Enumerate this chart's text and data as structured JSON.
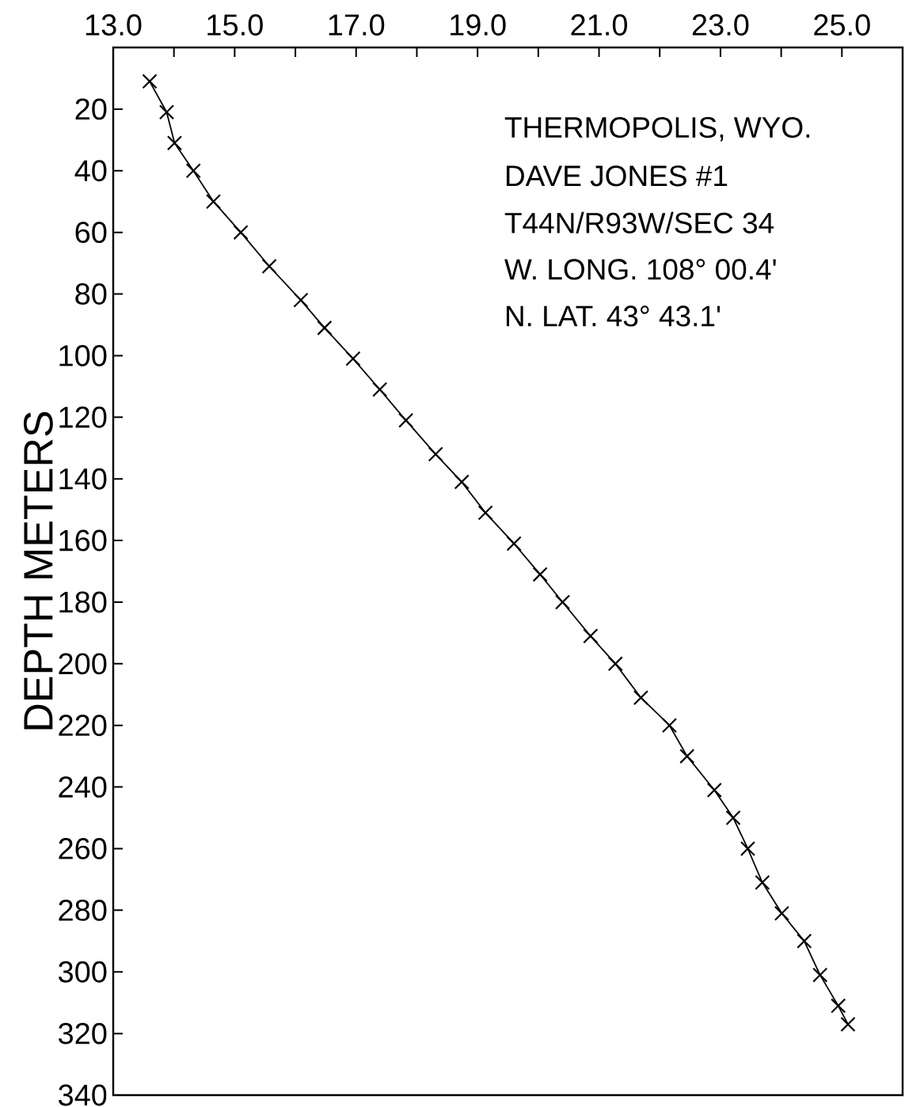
{
  "chart_data": {
    "type": "line",
    "ylabel": "DEPTH METERS",
    "annotations": [
      "THERMOPOLIS, WYO.",
      "DAVE JONES #1",
      "T44N/R93W/SEC 34",
      "W. LONG. 108° 00.4'",
      "N. LAT. 43° 43.1'"
    ],
    "xlim": [
      13,
      26
    ],
    "xticks": [
      {
        "value": 13,
        "label": "13.0"
      },
      {
        "value": 14,
        "label": null
      },
      {
        "value": 15,
        "label": "15.0"
      },
      {
        "value": 16,
        "label": null
      },
      {
        "value": 17,
        "label": "17.0"
      },
      {
        "value": 18,
        "label": null
      },
      {
        "value": 19,
        "label": "19.0"
      },
      {
        "value": 20,
        "label": null
      },
      {
        "value": 21,
        "label": "21.0"
      },
      {
        "value": 22,
        "label": null
      },
      {
        "value": 23,
        "label": "23.0"
      },
      {
        "value": 24,
        "label": null
      },
      {
        "value": 25,
        "label": "25.0"
      }
    ],
    "ylim": [
      340,
      0
    ],
    "yticks": [
      20,
      40,
      60,
      80,
      100,
      120,
      140,
      160,
      180,
      200,
      220,
      240,
      260,
      280,
      300,
      320,
      340
    ],
    "marker": "cross",
    "line_style": "solid",
    "series": [
      {
        "color": "#000000",
        "x": [
          13.6,
          13.88,
          14.01,
          14.32,
          14.65,
          15.1,
          15.57,
          16.09,
          16.48,
          16.95,
          17.39,
          17.82,
          18.31,
          18.74,
          19.13,
          19.6,
          20.03,
          20.4,
          20.86,
          21.27,
          21.69,
          22.16,
          22.45,
          22.9,
          23.21,
          23.45,
          23.69,
          24.01,
          24.38,
          24.64,
          24.94,
          25.1
        ],
        "values": [
          11,
          21,
          31,
          40,
          50,
          60,
          71,
          82,
          91,
          101,
          111,
          121,
          132,
          141,
          151,
          161,
          171,
          180,
          191,
          200,
          211,
          220,
          230,
          241,
          250,
          260,
          271,
          281,
          290,
          301,
          311,
          317
        ]
      }
    ]
  }
}
